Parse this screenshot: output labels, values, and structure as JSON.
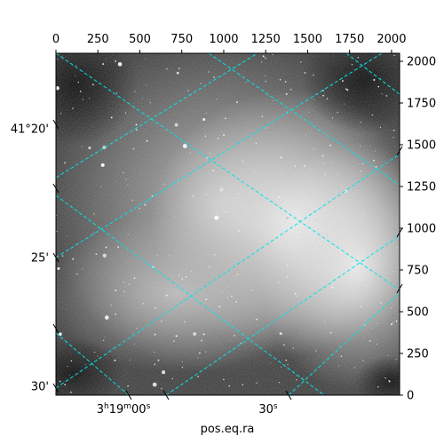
{
  "chart_data": {
    "type": "image",
    "title": "",
    "xlabel": "pos.eq.ra",
    "ylabel": "",
    "pixel_axes": {
      "x_range": [
        0,
        2048
      ],
      "y_range": [
        0,
        2048
      ],
      "x_ticks": [
        0,
        250,
        500,
        750,
        1000,
        1250,
        1500,
        1750,
        2000
      ],
      "y_ticks": [
        0,
        250,
        500,
        750,
        1000,
        1250,
        1500,
        1750,
        2000
      ]
    },
    "world_axes": {
      "ra_tick_labels": [
        "3h19m00s",
        "30s"
      ],
      "dec_tick_labels": [
        "41°20'",
        "25'",
        "30'"
      ]
    },
    "grid": true,
    "grid_color": "#00e5e5",
    "image_colormap": "gray"
  }
}
